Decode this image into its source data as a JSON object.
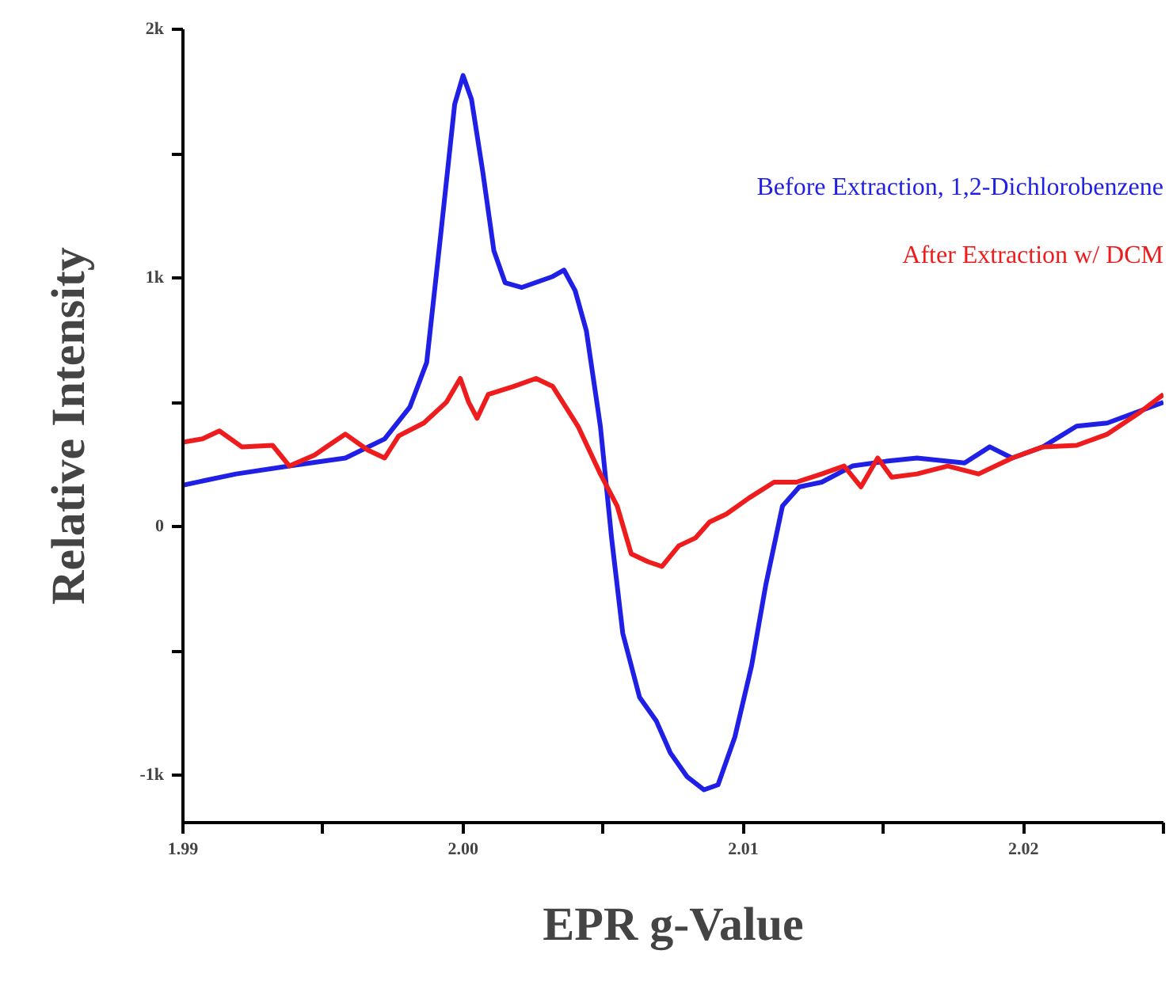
{
  "chart_data": {
    "type": "line",
    "xlabel": "EPR g-Value",
    "ylabel": "Relative Intensity",
    "xlim": [
      1.99,
      2.025
    ],
    "ylim": [
      -1190,
      2000
    ],
    "xticks": [
      1.99,
      {
        "value": 1.995,
        "label": null
      },
      {
        "value": 2.0,
        "label": "2.00"
      },
      {
        "value": 2.005,
        "label": null
      },
      2.01,
      {
        "value": 2.015,
        "label": null
      },
      2.02,
      {
        "value": 2.025,
        "label": null
      }
    ],
    "yticks": [
      {
        "value": -1000,
        "label": "-1k"
      },
      {
        "value": -500,
        "label": null
      },
      0,
      {
        "value": 500,
        "label": null
      },
      {
        "value": 1000,
        "label": "1k"
      },
      {
        "value": 1500,
        "label": null
      },
      {
        "value": 2000,
        "label": "2k"
      }
    ],
    "grid": false,
    "legend": "top right",
    "marker": "none",
    "line_style": "solid",
    "series": [
      {
        "name": "Before Extraction, 1,2-Dichlorobenzene",
        "color": "#1f1fe6",
        "x": [
          1.99,
          1.9919,
          1.9938,
          1.9958,
          1.9972,
          1.9981,
          1.9987,
          1.9992,
          1.9997,
          2.0,
          2.0003,
          2.0007,
          2.0011,
          2.0015,
          2.0021,
          2.0032,
          2.0036,
          2.004,
          2.0044,
          2.0049,
          2.0053,
          2.0057,
          2.0063,
          2.0069,
          2.0074,
          2.008,
          2.0086,
          2.0091,
          2.0097,
          2.0103,
          2.0108,
          2.0114,
          2.012,
          2.0128,
          2.0139,
          2.0151,
          2.0162,
          2.0179,
          2.0188,
          2.0196,
          2.0207,
          2.0219,
          2.023,
          2.025
        ],
        "values": [
          167,
          212,
          244,
          276,
          353,
          481,
          660,
          1173,
          1699,
          1814,
          1718,
          1429,
          1109,
          981,
          962,
          1006,
          1032,
          949,
          788,
          404,
          -45,
          -429,
          -686,
          -782,
          -910,
          -1006,
          -1058,
          -1038,
          -846,
          -558,
          -237,
          83,
          160,
          179,
          244,
          263,
          276,
          256,
          321,
          276,
          321,
          404,
          417,
          500
        ]
      },
      {
        "name": "After Extraction w/ DCM",
        "color": "#ee1c1c",
        "x": [
          1.99,
          1.9907,
          1.9913,
          1.9921,
          1.9932,
          1.9938,
          1.9947,
          1.9952,
          1.9958,
          1.9966,
          1.9972,
          1.9977,
          1.9986,
          1.9994,
          1.9999,
          2.0002,
          2.0005,
          2.0009,
          2.0018,
          2.0026,
          2.0032,
          2.0041,
          2.0049,
          2.0055,
          2.006,
          2.0066,
          2.0071,
          2.0077,
          2.0083,
          2.0088,
          2.0094,
          2.0102,
          2.0111,
          2.0119,
          2.0128,
          2.0136,
          2.0142,
          2.0148,
          2.0153,
          2.0162,
          2.0173,
          2.0184,
          2.0196,
          2.0207,
          2.0219,
          2.023,
          2.0241,
          2.025
        ],
        "values": [
          340,
          353,
          385,
          321,
          327,
          244,
          288,
          327,
          372,
          308,
          276,
          365,
          417,
          500,
          596,
          500,
          436,
          532,
          564,
          596,
          564,
          404,
          212,
          83,
          -109,
          -141,
          -160,
          -77,
          -45,
          19,
          51,
          115,
          179,
          179,
          212,
          244,
          160,
          276,
          199,
          212,
          244,
          212,
          276,
          321,
          327,
          372,
          455,
          532
        ]
      }
    ]
  }
}
